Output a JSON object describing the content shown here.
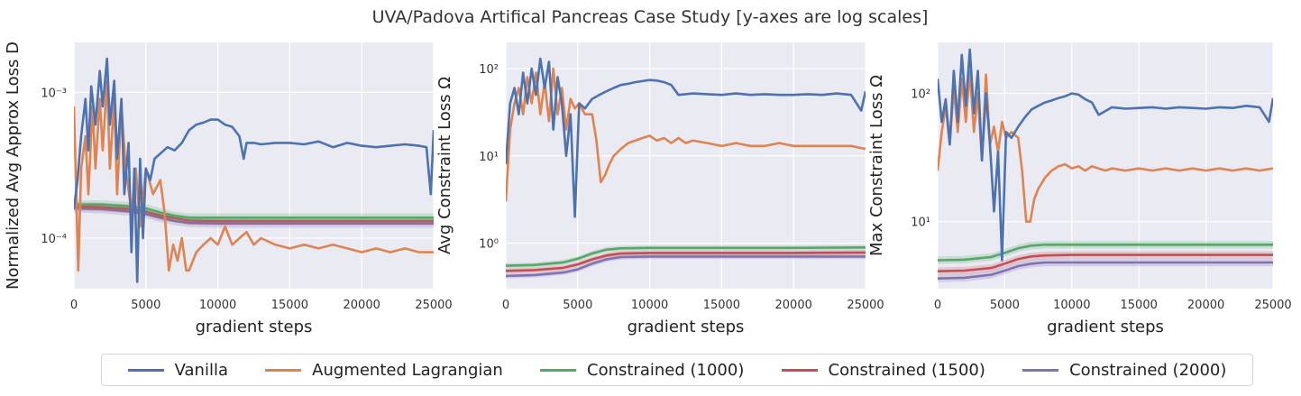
{
  "title": "UVA/Padova Artifical Pancreas Case Study [y-axes are log scales]",
  "colors": {
    "vanilla": "#4c72b0",
    "augmented": "#dd8452",
    "c1000": "#55a868",
    "c1500": "#c44e52",
    "c2000": "#8172b3",
    "panel_bg": "#eaeaf2",
    "grid": "#ffffff"
  },
  "legend": {
    "placement": "bottom-center",
    "items": [
      {
        "label": "Vanilla",
        "color": "#4c72b0"
      },
      {
        "label": "Augmented Lagrangian",
        "color": "#dd8452"
      },
      {
        "label": "Constrained (1000)",
        "color": "#55a868"
      },
      {
        "label": "Constrained (1500)",
        "color": "#c44e52"
      },
      {
        "label": "Constrained (2000)",
        "color": "#8172b3"
      }
    ]
  },
  "chart_data": [
    {
      "type": "line",
      "ylabel": "Normalized Avg Approx Loss D",
      "xlabel": "gradient steps",
      "xlim": [
        0,
        25000
      ],
      "ylim": [
        4.5e-05,
        0.0022
      ],
      "yscale": "log",
      "grid": true,
      "xticks": [
        0,
        5000,
        10000,
        15000,
        20000,
        25000
      ],
      "yticks": [
        {
          "value": 0.0001,
          "label": "10⁻⁴"
        },
        {
          "value": 0.001,
          "label": "10⁻³"
        }
      ],
      "series": [
        {
          "name": "Vanilla",
          "key": "vanilla",
          "x": [
            0,
            250,
            500,
            800,
            1000,
            1200,
            1500,
            1800,
            2000,
            2300,
            2500,
            2800,
            3000,
            3300,
            3500,
            3800,
            4000,
            4200,
            4400,
            4600,
            4800,
            5000,
            5300,
            5600,
            6000,
            6500,
            7000,
            7500,
            8000,
            8500,
            9000,
            9500,
            10000,
            10500,
            11000,
            11500,
            11800,
            12000,
            12500,
            13000,
            14000,
            15000,
            16000,
            17000,
            18000,
            19000,
            20000,
            21000,
            22000,
            23000,
            24000,
            24500,
            24800,
            25000
          ],
          "y": [
            0.00016,
            0.00025,
            0.0005,
            0.0009,
            0.0004,
            0.0011,
            0.0006,
            0.0014,
            0.0008,
            0.0017,
            0.0006,
            0.0012,
            0.00035,
            0.0009,
            0.0002,
            0.00045,
            8e-05,
            0.0003,
            5e-05,
            0.00035,
            0.0001,
            0.0003,
            0.00025,
            0.00035,
            0.00038,
            0.00042,
            0.0004,
            0.00045,
            0.00055,
            0.0006,
            0.00062,
            0.00065,
            0.00065,
            0.0006,
            0.00058,
            0.0005,
            0.00035,
            0.00045,
            0.00045,
            0.00044,
            0.00045,
            0.00045,
            0.00044,
            0.00046,
            0.00042,
            0.00045,
            0.00043,
            0.00042,
            0.00043,
            0.00044,
            0.00043,
            0.00042,
            0.0002,
            0.00055
          ]
        },
        {
          "name": "Augmented Lagrangian",
          "key": "augmented",
          "x": [
            0,
            300,
            500,
            800,
            1000,
            1300,
            1500,
            1800,
            2000,
            2300,
            2500,
            2800,
            3000,
            3300,
            3600,
            4000,
            4300,
            4600,
            5000,
            5500,
            6000,
            6300,
            6600,
            6900,
            7200,
            7500,
            7800,
            8000,
            8500,
            9000,
            9500,
            10000,
            10500,
            11000,
            11500,
            12000,
            12500,
            13000,
            14000,
            15000,
            16000,
            17000,
            18000,
            19000,
            20000,
            21000,
            22000,
            23000,
            24000,
            25000
          ],
          "y": [
            0.0008,
            6e-05,
            0.0003,
            0.0005,
            0.0002,
            0.0008,
            0.0003,
            0.0009,
            0.0004,
            0.0012,
            0.0003,
            0.0009,
            0.0002,
            0.0008,
            0.0003,
            0.00015,
            0.0003,
            0.00012,
            0.0003,
            0.0002,
            0.00025,
            0.00015,
            6e-05,
            9e-05,
            7e-05,
            0.0001,
            6e-05,
            6e-05,
            8e-05,
            9e-05,
            0.0001,
            9e-05,
            0.00012,
            9e-05,
            0.0001,
            0.00011,
            9e-05,
            0.0001,
            9e-05,
            8.5e-05,
            9e-05,
            8.5e-05,
            9e-05,
            8.5e-05,
            8e-05,
            8.5e-05,
            8e-05,
            8.5e-05,
            8e-05,
            8e-05
          ]
        },
        {
          "name": "Constrained (1000)",
          "key": "c1000",
          "x": [
            0,
            2000,
            4000,
            5000,
            6000,
            7000,
            8000,
            10000,
            15000,
            20000,
            25000
          ],
          "y": [
            0.00017,
            0.00017,
            0.000165,
            0.00016,
            0.00015,
            0.000142,
            0.000138,
            0.000138,
            0.000138,
            0.000138,
            0.000138
          ]
        },
        {
          "name": "Constrained (1500)",
          "key": "c1500",
          "x": [
            0,
            2000,
            4000,
            5000,
            6000,
            7000,
            8000,
            10000,
            15000,
            20000,
            25000
          ],
          "y": [
            0.000165,
            0.000163,
            0.000158,
            0.000152,
            0.000143,
            0.000137,
            0.000132,
            0.000131,
            0.000131,
            0.000131,
            0.000131
          ]
        },
        {
          "name": "Constrained (2000)",
          "key": "c2000",
          "x": [
            0,
            2000,
            4000,
            5000,
            6000,
            7000,
            8000,
            10000,
            15000,
            20000,
            25000
          ],
          "y": [
            0.00016,
            0.000158,
            0.000152,
            0.000146,
            0.000138,
            0.000131,
            0.000127,
            0.000126,
            0.000126,
            0.000126,
            0.000126
          ]
        }
      ]
    },
    {
      "type": "line",
      "ylabel": "Avg Constraint Loss Ω",
      "xlabel": "gradient steps",
      "xlim": [
        0,
        25000
      ],
      "ylim": [
        0.3,
        200
      ],
      "yscale": "log",
      "grid": true,
      "xticks": [
        0,
        5000,
        10000,
        15000,
        20000,
        25000
      ],
      "yticks": [
        {
          "value": 1,
          "label": "10⁰"
        },
        {
          "value": 10,
          "label": "10¹"
        },
        {
          "value": 100,
          "label": "10²"
        }
      ],
      "series": [
        {
          "name": "Vanilla",
          "key": "vanilla",
          "x": [
            0,
            300,
            600,
            900,
            1200,
            1500,
            1800,
            2100,
            2400,
            2700,
            3000,
            3300,
            3600,
            3900,
            4200,
            4500,
            4800,
            5100,
            5500,
            6000,
            6500,
            7000,
            7500,
            8000,
            8500,
            9000,
            9500,
            10000,
            10500,
            11000,
            11500,
            12000,
            13000,
            14000,
            15000,
            16000,
            17000,
            18000,
            19000,
            20000,
            21000,
            22000,
            23000,
            24000,
            24700,
            25000
          ],
          "y": [
            8,
            40,
            60,
            30,
            90,
            40,
            100,
            50,
            130,
            60,
            120,
            20,
            80,
            40,
            10,
            30,
            2,
            40,
            35,
            45,
            50,
            55,
            60,
            65,
            67,
            70,
            72,
            74,
            73,
            70,
            65,
            50,
            52,
            51,
            50,
            52,
            50,
            51,
            50,
            50,
            51,
            50,
            52,
            50,
            33,
            55
          ]
        },
        {
          "name": "Augmented Lagrangian",
          "key": "augmented",
          "x": [
            0,
            300,
            600,
            900,
            1200,
            1500,
            1800,
            2100,
            2400,
            2700,
            3000,
            3300,
            3600,
            3900,
            4200,
            4500,
            4800,
            5100,
            5500,
            6000,
            6300,
            6600,
            6900,
            7200,
            7500,
            8000,
            8500,
            9000,
            9500,
            10000,
            10500,
            11000,
            11500,
            12000,
            12500,
            13000,
            14000,
            15000,
            16000,
            17000,
            18000,
            19000,
            20000,
            21000,
            22000,
            23000,
            24000,
            25000
          ],
          "y": [
            3,
            20,
            40,
            60,
            30,
            80,
            40,
            90,
            30,
            70,
            25,
            100,
            30,
            60,
            20,
            45,
            35,
            40,
            30,
            30,
            15,
            5,
            6,
            8,
            10,
            12,
            14,
            15,
            16,
            17,
            15,
            16,
            14,
            16,
            14,
            15,
            14,
            13,
            14,
            13,
            13,
            14,
            13,
            13,
            13,
            13,
            13,
            12
          ]
        },
        {
          "name": "Constrained (1000)",
          "key": "c1000",
          "x": [
            0,
            2000,
            4000,
            5000,
            6000,
            7000,
            8000,
            10000,
            15000,
            20000,
            25000
          ],
          "y": [
            0.55,
            0.56,
            0.6,
            0.66,
            0.76,
            0.84,
            0.87,
            0.88,
            0.88,
            0.88,
            0.89
          ]
        },
        {
          "name": "Constrained (1500)",
          "key": "c1500",
          "x": [
            0,
            2000,
            4000,
            5000,
            6000,
            7000,
            8000,
            10000,
            15000,
            20000,
            25000
          ],
          "y": [
            0.48,
            0.49,
            0.52,
            0.57,
            0.65,
            0.72,
            0.76,
            0.77,
            0.77,
            0.77,
            0.78
          ]
        },
        {
          "name": "Constrained (2000)",
          "key": "c2000",
          "x": [
            0,
            2000,
            4000,
            5000,
            6000,
            7000,
            8000,
            10000,
            15000,
            20000,
            25000
          ],
          "y": [
            0.42,
            0.43,
            0.46,
            0.5,
            0.58,
            0.65,
            0.69,
            0.7,
            0.7,
            0.7,
            0.7
          ]
        }
      ]
    },
    {
      "type": "line",
      "ylabel": "Max Constraint Loss Ω",
      "xlabel": "gradient steps",
      "xlim": [
        0,
        25000
      ],
      "ylim": [
        3,
        250
      ],
      "yscale": "log",
      "grid": true,
      "xticks": [
        0,
        5000,
        10000,
        15000,
        20000,
        25000
      ],
      "yticks": [
        {
          "value": 10,
          "label": "10¹"
        },
        {
          "value": 100,
          "label": "10²"
        }
      ],
      "series": [
        {
          "name": "Vanilla",
          "key": "vanilla",
          "x": [
            0,
            300,
            600,
            900,
            1200,
            1500,
            1800,
            2100,
            2400,
            2700,
            3000,
            3300,
            3600,
            3900,
            4200,
            4500,
            4800,
            5100,
            5500,
            6000,
            6500,
            7000,
            7500,
            8000,
            8500,
            9000,
            9500,
            10000,
            10500,
            11000,
            11500,
            12000,
            13000,
            14000,
            15000,
            16000,
            17000,
            18000,
            19000,
            20000,
            21000,
            22000,
            23000,
            24000,
            24700,
            25000
          ],
          "y": [
            130,
            60,
            90,
            40,
            150,
            60,
            200,
            80,
            220,
            70,
            150,
            30,
            100,
            40,
            12,
            35,
            5,
            50,
            45,
            55,
            65,
            75,
            80,
            85,
            88,
            92,
            95,
            100,
            98,
            90,
            85,
            68,
            78,
            76,
            77,
            78,
            76,
            78,
            77,
            76,
            78,
            77,
            80,
            78,
            60,
            92
          ]
        },
        {
          "name": "Augmented Lagrangian",
          "key": "augmented",
          "x": [
            0,
            300,
            600,
            900,
            1200,
            1500,
            1800,
            2100,
            2400,
            2700,
            3000,
            3300,
            3600,
            3900,
            4200,
            4500,
            4800,
            5100,
            5500,
            6000,
            6300,
            6600,
            6900,
            7200,
            7500,
            8000,
            8500,
            9000,
            9500,
            10000,
            10500,
            11000,
            11500,
            12000,
            12500,
            13000,
            14000,
            15000,
            16000,
            17000,
            18000,
            19000,
            20000,
            21000,
            22000,
            23000,
            24000,
            25000
          ],
          "y": [
            25,
            50,
            80,
            40,
            110,
            50,
            130,
            60,
            150,
            50,
            100,
            30,
            140,
            40,
            55,
            35,
            60,
            45,
            50,
            45,
            25,
            10,
            10,
            15,
            18,
            22,
            25,
            27,
            28,
            26,
            27,
            25,
            27,
            26,
            25,
            26,
            25,
            26,
            25,
            26,
            25,
            26,
            25,
            26,
            25,
            26,
            25,
            26
          ]
        },
        {
          "name": "Constrained (1000)",
          "key": "c1000",
          "x": [
            0,
            2000,
            4000,
            5000,
            6000,
            7000,
            8000,
            10000,
            15000,
            20000,
            25000
          ],
          "y": [
            5,
            5.05,
            5.3,
            5.7,
            6.2,
            6.5,
            6.6,
            6.6,
            6.6,
            6.6,
            6.6
          ]
        },
        {
          "name": "Constrained (1500)",
          "key": "c1500",
          "x": [
            0,
            2000,
            4000,
            5000,
            6000,
            7000,
            8000,
            10000,
            15000,
            20000,
            25000
          ],
          "y": [
            4.1,
            4.15,
            4.35,
            4.7,
            5.1,
            5.35,
            5.45,
            5.5,
            5.5,
            5.5,
            5.5
          ]
        },
        {
          "name": "Constrained (2000)",
          "key": "c2000",
          "x": [
            0,
            2000,
            4000,
            5000,
            6000,
            7000,
            8000,
            10000,
            15000,
            20000,
            25000
          ],
          "y": [
            3.6,
            3.65,
            3.85,
            4.15,
            4.5,
            4.7,
            4.8,
            4.8,
            4.8,
            4.8,
            4.8
          ]
        }
      ]
    }
  ]
}
